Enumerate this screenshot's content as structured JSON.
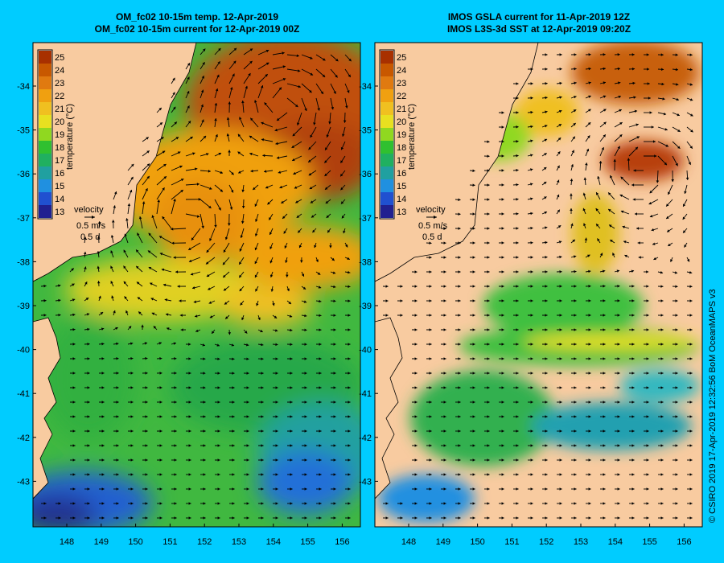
{
  "panels": [
    {
      "id": "left",
      "title_line1": "OM_fc02 10-15m temp. 12-Apr-2019",
      "title_line2": "OM_fc02 10-15m current for 12-Apr-2019 00Z",
      "colorbar_label": "temperature (°C)",
      "velocity_label": "velocity",
      "velocity_scale": "0.5 m/s",
      "velocity_time": "0.5 d"
    },
    {
      "id": "right",
      "title_line1": "IMOS GSLA current for 11-Apr-2019 12Z",
      "title_line2": "IMOS L3S-3d SST at 12-Apr-2019 09:20Z",
      "colorbar_label": "temperature (°C)",
      "velocity_label": "velocity",
      "velocity_scale": "0.5 m/s",
      "velocity_time": "0.5 d"
    }
  ],
  "colorbar_ticks": [
    "25",
    "24",
    "23",
    "22",
    "21",
    "20",
    "19",
    "18",
    "17",
    "16",
    "15",
    "14",
    "13"
  ],
  "colorbar_colors": [
    "#a83000",
    "#c85800",
    "#e07a10",
    "#f0a010",
    "#f0c020",
    "#e8e020",
    "#90d820",
    "#30c030",
    "#20b060",
    "#20a0a0",
    "#2090e0",
    "#2050d0",
    "#202090"
  ],
  "lat_ticks": [
    "-34",
    "-35",
    "-36",
    "-37",
    "-38",
    "-39",
    "-40",
    "-41",
    "-42",
    "-43"
  ],
  "lon_ticks": [
    "148",
    "149",
    "150",
    "151",
    "152",
    "153",
    "154",
    "155",
    "156"
  ],
  "credit": "© CSIRO 2019   17-Apr-2019 12:32:56 BoM OceanMAPS v3",
  "colors": {
    "background": "#00ccff",
    "land": "#f8cba0",
    "frame": "#000000"
  }
}
